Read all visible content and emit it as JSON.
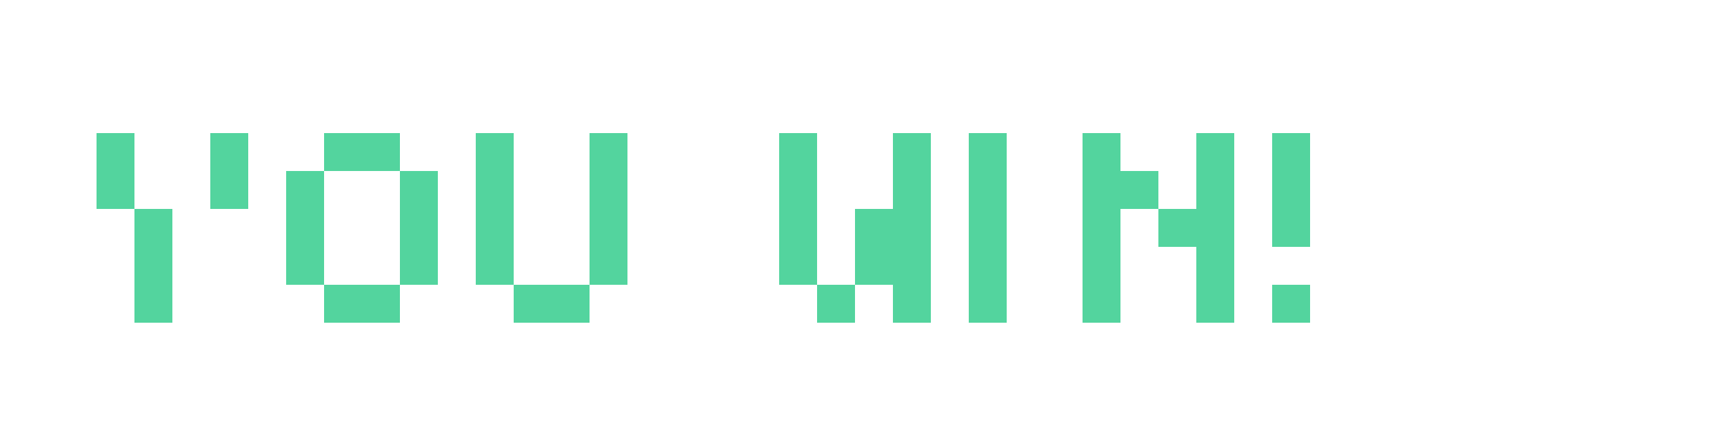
{
  "game": {
    "message": "YOU WIN!"
  },
  "colors": {
    "background": "#ffffff",
    "pixel": "#53d49e"
  }
}
